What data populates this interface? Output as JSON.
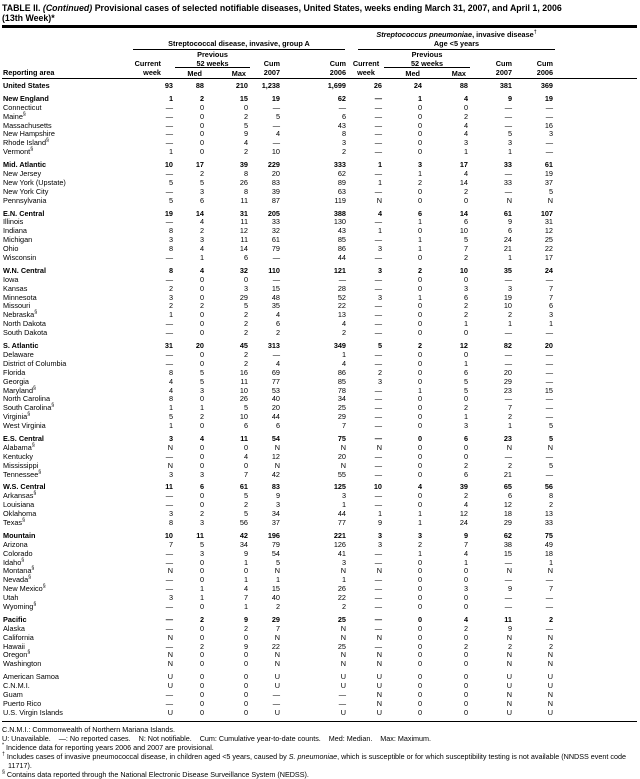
{
  "title": {
    "t1": "TABLE II. ",
    "t2": "(Continued)",
    "t3": " Provisional cases of selected notifiable diseases, United States, weeks ending March 31, 2007, and April 1, 2006",
    "t4": "(13th Week)*"
  },
  "header": {
    "reporting_area": "Reporting area",
    "group_a": "Streptococcal disease, invasive, group A",
    "group_b_italic": "Streptococcus pneumoniae",
    "group_b_rest": ", invasive disease",
    "group_b_sup": "†",
    "group_b_sub": "Age <5 years",
    "current": "Current",
    "week": "week",
    "previous": "Previous",
    "w52": "52 weeks",
    "med": "Med",
    "max": "Max",
    "cum": "Cum",
    "y2007": "2007",
    "y2006": "2006"
  },
  "table": {
    "col_names": [
      "a-current-week",
      "a-med",
      "a-max",
      "a-cum-2007",
      "a-cum-2006",
      "b-current-week",
      "b-med",
      "b-max",
      "b-cum-2007",
      "b-cum-2006"
    ],
    "rows": [
      {
        "area": "United States",
        "bold": true,
        "a": [
          "93",
          "88",
          "210",
          "1,238",
          "1,699"
        ],
        "b": [
          "26",
          "24",
          "88",
          "381",
          "369"
        ]
      },
      {
        "area": "New England",
        "bold": true,
        "gap": true,
        "a": [
          "1",
          "2",
          "15",
          "19",
          "62"
        ],
        "b": [
          "—",
          "1",
          "4",
          "9",
          "19"
        ]
      },
      {
        "area": "Connecticut",
        "a": [
          "—",
          "0",
          "0",
          "—",
          "—"
        ],
        "b": [
          "—",
          "0",
          "0",
          "—",
          "—"
        ]
      },
      {
        "area": "Maine",
        "sup": "§",
        "a": [
          "—",
          "0",
          "2",
          "5",
          "6"
        ],
        "b": [
          "—",
          "0",
          "2",
          "—",
          "—"
        ]
      },
      {
        "area": "Massachusetts",
        "a": [
          "—",
          "0",
          "5",
          "—",
          "43"
        ],
        "b": [
          "—",
          "0",
          "4",
          "—",
          "16"
        ]
      },
      {
        "area": "New Hampshire",
        "a": [
          "—",
          "0",
          "9",
          "4",
          "8"
        ],
        "b": [
          "—",
          "0",
          "4",
          "5",
          "3"
        ]
      },
      {
        "area": "Rhode Island",
        "sup": "§",
        "a": [
          "—",
          "0",
          "4",
          "—",
          "3"
        ],
        "b": [
          "—",
          "0",
          "3",
          "3",
          "—"
        ]
      },
      {
        "area": "Vermont",
        "sup": "§",
        "a": [
          "1",
          "0",
          "2",
          "10",
          "2"
        ],
        "b": [
          "—",
          "0",
          "1",
          "1",
          "—"
        ]
      },
      {
        "area": "Mid. Atlantic",
        "bold": true,
        "gap": true,
        "a": [
          "10",
          "17",
          "39",
          "229",
          "333"
        ],
        "b": [
          "1",
          "3",
          "17",
          "33",
          "61"
        ]
      },
      {
        "area": "New Jersey",
        "a": [
          "—",
          "2",
          "8",
          "20",
          "62"
        ],
        "b": [
          "—",
          "1",
          "4",
          "—",
          "19"
        ]
      },
      {
        "area": "New York (Upstate)",
        "a": [
          "5",
          "5",
          "26",
          "83",
          "89"
        ],
        "b": [
          "1",
          "2",
          "14",
          "33",
          "37"
        ]
      },
      {
        "area": "New York City",
        "a": [
          "—",
          "3",
          "8",
          "39",
          "63"
        ],
        "b": [
          "—",
          "0",
          "2",
          "—",
          "5"
        ]
      },
      {
        "area": "Pennsylvania",
        "a": [
          "5",
          "6",
          "11",
          "87",
          "119"
        ],
        "b": [
          "N",
          "0",
          "0",
          "N",
          "N"
        ]
      },
      {
        "area": "E.N. Central",
        "bold": true,
        "gap": true,
        "a": [
          "19",
          "14",
          "31",
          "205",
          "388"
        ],
        "b": [
          "4",
          "6",
          "14",
          "61",
          "107"
        ]
      },
      {
        "area": "Illinois",
        "a": [
          "—",
          "4",
          "11",
          "33",
          "130"
        ],
        "b": [
          "—",
          "1",
          "6",
          "9",
          "31"
        ]
      },
      {
        "area": "Indiana",
        "a": [
          "8",
          "2",
          "12",
          "32",
          "43"
        ],
        "b": [
          "1",
          "0",
          "10",
          "6",
          "12"
        ]
      },
      {
        "area": "Michigan",
        "a": [
          "3",
          "3",
          "11",
          "61",
          "85"
        ],
        "b": [
          "—",
          "1",
          "5",
          "24",
          "25"
        ]
      },
      {
        "area": "Ohio",
        "a": [
          "8",
          "4",
          "14",
          "79",
          "86"
        ],
        "b": [
          "3",
          "1",
          "7",
          "21",
          "22"
        ]
      },
      {
        "area": "Wisconsin",
        "a": [
          "—",
          "1",
          "6",
          "—",
          "44"
        ],
        "b": [
          "—",
          "0",
          "2",
          "1",
          "17"
        ]
      },
      {
        "area": "W.N. Central",
        "bold": true,
        "gap": true,
        "a": [
          "8",
          "4",
          "32",
          "110",
          "121"
        ],
        "b": [
          "3",
          "2",
          "10",
          "35",
          "24"
        ]
      },
      {
        "area": "Iowa",
        "a": [
          "—",
          "0",
          "0",
          "—",
          "—"
        ],
        "b": [
          "—",
          "0",
          "0",
          "—",
          "—"
        ]
      },
      {
        "area": "Kansas",
        "a": [
          "2",
          "0",
          "3",
          "15",
          "28"
        ],
        "b": [
          "—",
          "0",
          "3",
          "3",
          "7"
        ]
      },
      {
        "area": "Minnesota",
        "a": [
          "3",
          "0",
          "29",
          "48",
          "52"
        ],
        "b": [
          "3",
          "1",
          "6",
          "19",
          "7"
        ]
      },
      {
        "area": "Missouri",
        "a": [
          "2",
          "2",
          "5",
          "35",
          "22"
        ],
        "b": [
          "—",
          "0",
          "2",
          "10",
          "6"
        ]
      },
      {
        "area": "Nebraska",
        "sup": "§",
        "a": [
          "1",
          "0",
          "2",
          "4",
          "13"
        ],
        "b": [
          "—",
          "0",
          "2",
          "2",
          "3"
        ]
      },
      {
        "area": "North Dakota",
        "a": [
          "—",
          "0",
          "2",
          "6",
          "4"
        ],
        "b": [
          "—",
          "0",
          "1",
          "1",
          "1"
        ]
      },
      {
        "area": "South Dakota",
        "a": [
          "—",
          "0",
          "2",
          "2",
          "2"
        ],
        "b": [
          "—",
          "0",
          "0",
          "—",
          "—"
        ]
      },
      {
        "area": "S. Atlantic",
        "bold": true,
        "gap": true,
        "a": [
          "31",
          "20",
          "45",
          "313",
          "349"
        ],
        "b": [
          "5",
          "2",
          "12",
          "82",
          "20"
        ]
      },
      {
        "area": "Delaware",
        "a": [
          "—",
          "0",
          "2",
          "—",
          "1"
        ],
        "b": [
          "—",
          "0",
          "0",
          "—",
          "—"
        ]
      },
      {
        "area": "District of Columbia",
        "a": [
          "—",
          "0",
          "2",
          "4",
          "4"
        ],
        "b": [
          "—",
          "0",
          "1",
          "—",
          "—"
        ]
      },
      {
        "area": "Florida",
        "a": [
          "8",
          "5",
          "16",
          "69",
          "86"
        ],
        "b": [
          "2",
          "0",
          "6",
          "20",
          "—"
        ]
      },
      {
        "area": "Georgia",
        "a": [
          "4",
          "5",
          "11",
          "77",
          "85"
        ],
        "b": [
          "3",
          "0",
          "5",
          "29",
          "—"
        ]
      },
      {
        "area": "Maryland",
        "sup": "§",
        "a": [
          "4",
          "3",
          "10",
          "53",
          "78"
        ],
        "b": [
          "—",
          "1",
          "5",
          "23",
          "15"
        ]
      },
      {
        "area": "North Carolina",
        "a": [
          "8",
          "0",
          "26",
          "40",
          "34"
        ],
        "b": [
          "—",
          "0",
          "0",
          "—",
          "—"
        ]
      },
      {
        "area": "South Carolina",
        "sup": "§",
        "a": [
          "1",
          "1",
          "5",
          "20",
          "25"
        ],
        "b": [
          "—",
          "0",
          "2",
          "7",
          "—"
        ]
      },
      {
        "area": "Virginia",
        "sup": "§",
        "a": [
          "5",
          "2",
          "10",
          "44",
          "29"
        ],
        "b": [
          "—",
          "0",
          "1",
          "2",
          "—"
        ]
      },
      {
        "area": "West Virginia",
        "a": [
          "1",
          "0",
          "6",
          "6",
          "7"
        ],
        "b": [
          "—",
          "0",
          "3",
          "1",
          "5"
        ]
      },
      {
        "area": "E.S. Central",
        "bold": true,
        "gap": true,
        "a": [
          "3",
          "4",
          "11",
          "54",
          "75"
        ],
        "b": [
          "—",
          "0",
          "6",
          "23",
          "5"
        ]
      },
      {
        "area": "Alabama",
        "sup": "§",
        "a": [
          "N",
          "0",
          "0",
          "N",
          "N"
        ],
        "b": [
          "N",
          "0",
          "0",
          "N",
          "N"
        ]
      },
      {
        "area": "Kentucky",
        "a": [
          "—",
          "0",
          "4",
          "12",
          "20"
        ],
        "b": [
          "—",
          "0",
          "0",
          "—",
          "—"
        ]
      },
      {
        "area": "Mississippi",
        "a": [
          "N",
          "0",
          "0",
          "N",
          "N"
        ],
        "b": [
          "—",
          "0",
          "2",
          "2",
          "5"
        ]
      },
      {
        "area": "Tennessee",
        "sup": "§",
        "a": [
          "3",
          "3",
          "7",
          "42",
          "55"
        ],
        "b": [
          "—",
          "0",
          "6",
          "21",
          "—"
        ]
      },
      {
        "area": "W.S. Central",
        "bold": true,
        "gap": true,
        "a": [
          "11",
          "6",
          "61",
          "83",
          "125"
        ],
        "b": [
          "10",
          "4",
          "39",
          "65",
          "56"
        ]
      },
      {
        "area": "Arkansas",
        "sup": "§",
        "a": [
          "—",
          "0",
          "5",
          "9",
          "3"
        ],
        "b": [
          "—",
          "0",
          "2",
          "6",
          "8"
        ]
      },
      {
        "area": "Louisiana",
        "a": [
          "—",
          "0",
          "2",
          "3",
          "1"
        ],
        "b": [
          "—",
          "0",
          "4",
          "12",
          "2"
        ]
      },
      {
        "area": "Oklahoma",
        "a": [
          "3",
          "2",
          "5",
          "34",
          "44"
        ],
        "b": [
          "1",
          "1",
          "12",
          "18",
          "13"
        ]
      },
      {
        "area": "Texas",
        "sup": "§",
        "a": [
          "8",
          "3",
          "56",
          "37",
          "77"
        ],
        "b": [
          "9",
          "1",
          "24",
          "29",
          "33"
        ]
      },
      {
        "area": "Mountain",
        "bold": true,
        "gap": true,
        "a": [
          "10",
          "11",
          "42",
          "196",
          "221"
        ],
        "b": [
          "3",
          "3",
          "9",
          "62",
          "75"
        ]
      },
      {
        "area": "Arizona",
        "a": [
          "7",
          "5",
          "34",
          "79",
          "126"
        ],
        "b": [
          "3",
          "2",
          "7",
          "38",
          "49"
        ]
      },
      {
        "area": "Colorado",
        "a": [
          "—",
          "3",
          "9",
          "54",
          "41"
        ],
        "b": [
          "—",
          "1",
          "4",
          "15",
          "18"
        ]
      },
      {
        "area": "Idaho",
        "sup": "§",
        "a": [
          "—",
          "0",
          "1",
          "5",
          "3"
        ],
        "b": [
          "—",
          "0",
          "1",
          "—",
          "1"
        ]
      },
      {
        "area": "Montana",
        "sup": "§",
        "a": [
          "N",
          "0",
          "0",
          "N",
          "N"
        ],
        "b": [
          "N",
          "0",
          "0",
          "N",
          "N"
        ]
      },
      {
        "area": "Nevada",
        "sup": "§",
        "a": [
          "—",
          "0",
          "1",
          "1",
          "1"
        ],
        "b": [
          "—",
          "0",
          "0",
          "—",
          "—"
        ]
      },
      {
        "area": "New Mexico",
        "sup": "§",
        "a": [
          "—",
          "1",
          "4",
          "15",
          "26"
        ],
        "b": [
          "—",
          "0",
          "3",
          "9",
          "7"
        ]
      },
      {
        "area": "Utah",
        "a": [
          "3",
          "1",
          "7",
          "40",
          "22"
        ],
        "b": [
          "—",
          "0",
          "0",
          "—",
          "—"
        ]
      },
      {
        "area": "Wyoming",
        "sup": "§",
        "a": [
          "—",
          "0",
          "1",
          "2",
          "2"
        ],
        "b": [
          "—",
          "0",
          "0",
          "—",
          "—"
        ]
      },
      {
        "area": "Pacific",
        "bold": true,
        "gap": true,
        "a": [
          "—",
          "2",
          "9",
          "29",
          "25"
        ],
        "b": [
          "—",
          "0",
          "4",
          "11",
          "2"
        ]
      },
      {
        "area": "Alaska",
        "a": [
          "—",
          "0",
          "2",
          "7",
          "N"
        ],
        "b": [
          "—",
          "0",
          "2",
          "9",
          "—"
        ]
      },
      {
        "area": "California",
        "a": [
          "N",
          "0",
          "0",
          "N",
          "N"
        ],
        "b": [
          "N",
          "0",
          "0",
          "N",
          "N"
        ]
      },
      {
        "area": "Hawaii",
        "a": [
          "—",
          "2",
          "9",
          "22",
          "25"
        ],
        "b": [
          "—",
          "0",
          "2",
          "2",
          "2"
        ]
      },
      {
        "area": "Oregon",
        "sup": "§",
        "a": [
          "N",
          "0",
          "0",
          "N",
          "N"
        ],
        "b": [
          "N",
          "0",
          "0",
          "N",
          "N"
        ]
      },
      {
        "area": "Washington",
        "a": [
          "N",
          "0",
          "0",
          "N",
          "N"
        ],
        "b": [
          "N",
          "0",
          "0",
          "N",
          "N"
        ]
      },
      {
        "area": "American Samoa",
        "gap": true,
        "a": [
          "U",
          "0",
          "0",
          "U",
          "U"
        ],
        "b": [
          "U",
          "0",
          "0",
          "U",
          "U"
        ]
      },
      {
        "area": "C.N.M.I.",
        "a": [
          "U",
          "0",
          "0",
          "U",
          "U"
        ],
        "b": [
          "U",
          "0",
          "0",
          "U",
          "U"
        ]
      },
      {
        "area": "Guam",
        "a": [
          "—",
          "0",
          "0",
          "—",
          "—"
        ],
        "b": [
          "N",
          "0",
          "0",
          "N",
          "N"
        ]
      },
      {
        "area": "Puerto Rico",
        "a": [
          "—",
          "0",
          "0",
          "—",
          "—"
        ],
        "b": [
          "N",
          "0",
          "0",
          "N",
          "N"
        ]
      },
      {
        "area": "U.S. Virgin Islands",
        "a": [
          "U",
          "0",
          "0",
          "U",
          "U"
        ],
        "b": [
          "U",
          "0",
          "0",
          "U",
          "U"
        ]
      }
    ]
  },
  "footnotes": [
    {
      "parts": [
        {
          "text": "C.N.M.I.: Commonwealth of Northern Mariana Islands."
        }
      ]
    },
    {
      "parts": [
        {
          "text": "U: Unavailable.    —: No reported cases.    N: Not notifiable.    Cum: Cumulative year-to-date counts.    Med: Median.    Max: Maximum."
        }
      ]
    },
    {
      "marker": "*",
      "parts": [
        {
          "text": " Incidence data for reporting years 2006 and 2007 are provisional."
        }
      ]
    },
    {
      "marker": "†",
      "parts": [
        {
          "text": " Includes cases of invasive pneumococcal disease, in children aged <5 years, caused by "
        },
        {
          "text": "S. pneumoniae",
          "italic": true
        },
        {
          "text": ", which is susceptible or for which susceptibility testing is not available (NNDSS event code 11717)."
        }
      ]
    },
    {
      "marker": "§",
      "parts": [
        {
          "text": " Contains data reported through the National Electronic Disease Surveillance System (NEDSS)."
        }
      ]
    }
  ]
}
